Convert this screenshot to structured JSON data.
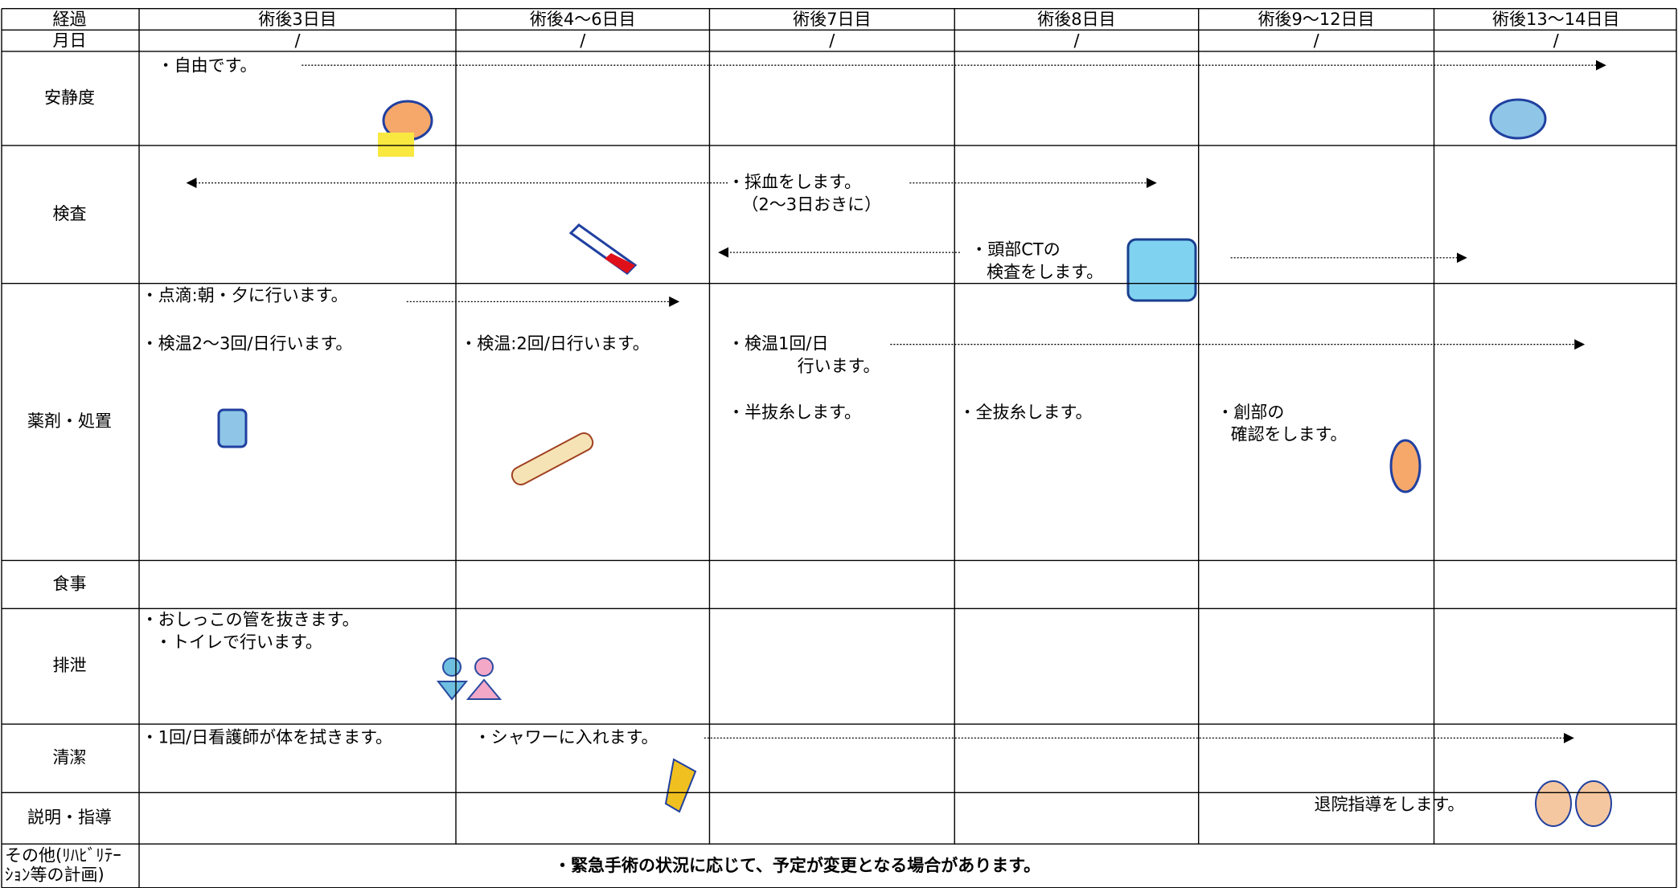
{
  "header": {
    "cells": [
      "経過",
      "術後3日目",
      "術後4～6日目",
      "術後7日目",
      "術後8日目",
      "術後9～12日目",
      "術後13～14日目"
    ]
  },
  "date_row": {
    "cells": [
      "月日",
      "/",
      "/",
      "/",
      "/",
      "/",
      "/"
    ]
  },
  "rows": [
    {
      "label": [
        "安静度"
      ],
      "notes": [
        [
          "・自由です。"
        ]
      ]
    },
    {
      "label": [
        "検査"
      ],
      "notes": [
        [
          "・採血をします。",
          "（2～3日おきに）"
        ],
        [
          "・頭部CTの",
          "検査をします。"
        ]
      ]
    },
    {
      "label": [
        "薬剤・処置"
      ],
      "notes": [
        [
          "・点滴:朝・夕に行います。"
        ],
        [
          "・検温2～3回/日行います。"
        ],
        [
          "・検温:2回/日行います。"
        ],
        [
          "・検温1回/日",
          "行います。"
        ],
        [
          "・半抜糸します。"
        ],
        [
          "・全抜糸します。"
        ],
        [
          "・創部の",
          "確認をします。"
        ]
      ]
    },
    {
      "label": [
        "食事"
      ],
      "notes": []
    },
    {
      "label": [
        "排泄"
      ],
      "notes": [
        [
          "・おしっこの管を抜きます。",
          "・トイレで行います。"
        ]
      ]
    },
    {
      "label": [
        "清潔"
      ],
      "notes": [
        [
          "・1回/日看護師が体を拭きます。"
        ],
        [
          "・シャワーに入れます。"
        ]
      ]
    },
    {
      "label": [
        "説明・指導"
      ],
      "notes": [
        [
          "退院指導をします。"
        ]
      ]
    },
    {
      "label": [
        "その他(ﾘﾊﾋﾞﾘﾃｰ",
        "ｼｮﾝ等の計画)"
      ],
      "notes": [
        [
          "・緊急手術の状況に応じて、予定が変更となる場合があります。"
        ]
      ]
    }
  ]
}
